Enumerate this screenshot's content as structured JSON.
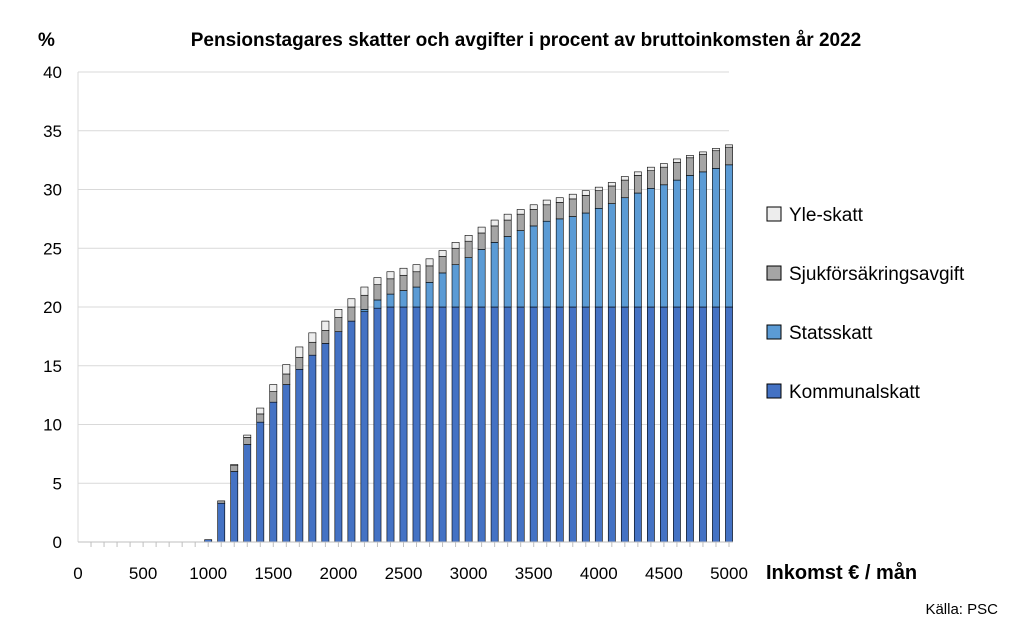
{
  "chart_data": {
    "type": "bar",
    "stacked": true,
    "title": "Pensionstagares skatter och avgifter i procent av bruttoinkomsten år 2022",
    "ylabel": "%",
    "xlabel": "Inkomst € / mån",
    "source": "Källa: PSC",
    "ylim": [
      0,
      40
    ],
    "xlim": [
      0,
      5000
    ],
    "yticks": [
      0,
      5,
      10,
      15,
      20,
      25,
      30,
      35,
      40
    ],
    "xticks": [
      0,
      500,
      1000,
      1500,
      2000,
      2500,
      3000,
      3500,
      4000,
      4500,
      5000
    ],
    "grid": true,
    "legend_position": "right",
    "x": [
      1000,
      1100,
      1200,
      1300,
      1400,
      1500,
      1600,
      1700,
      1800,
      1900,
      2000,
      2100,
      2200,
      2300,
      2400,
      2500,
      2600,
      2700,
      2800,
      2900,
      3000,
      3100,
      3200,
      3300,
      3400,
      3500,
      3600,
      3700,
      3800,
      3900,
      4000,
      4100,
      4200,
      4300,
      4400,
      4500,
      4600,
      4700,
      4800,
      4900,
      5000
    ],
    "series": [
      {
        "name": "Kommunalskatt",
        "color": "#4472C4",
        "values": [
          0.2,
          3.3,
          6.0,
          8.3,
          10.2,
          11.9,
          13.4,
          14.7,
          15.9,
          16.9,
          17.9,
          18.8,
          19.6,
          19.9,
          20,
          20,
          20,
          20,
          20,
          20,
          20,
          20,
          20,
          20,
          20,
          20,
          20,
          20,
          20,
          20,
          20,
          20,
          20,
          20,
          20,
          20,
          20,
          20,
          20,
          20,
          20
        ]
      },
      {
        "name": "Statsskatt",
        "color": "#5B9BD5",
        "values": [
          0,
          0,
          0,
          0,
          0,
          0,
          0,
          0,
          0,
          0,
          0,
          0,
          0.2,
          0.7,
          1.1,
          1.4,
          1.7,
          2.1,
          2.9,
          3.6,
          4.2,
          4.9,
          5.5,
          6.0,
          6.5,
          6.9,
          7.3,
          7.5,
          7.7,
          8.0,
          8.4,
          8.8,
          9.3,
          9.7,
          10.1,
          10.4,
          10.8,
          11.2,
          11.5,
          11.8,
          12.1
        ]
      },
      {
        "name": "Sjukförsäkringsavgift",
        "color": "#A5A5A5",
        "values": [
          0,
          0.2,
          0.5,
          0.6,
          0.7,
          0.9,
          0.9,
          1.0,
          1.1,
          1.1,
          1.2,
          1.2,
          1.2,
          1.3,
          1.3,
          1.3,
          1.3,
          1.4,
          1.4,
          1.4,
          1.4,
          1.4,
          1.4,
          1.4,
          1.4,
          1.4,
          1.4,
          1.4,
          1.5,
          1.5,
          1.5,
          1.5,
          1.5,
          1.5,
          1.5,
          1.5,
          1.5,
          1.5,
          1.5,
          1.5,
          1.5
        ]
      },
      {
        "name": "Yle-skatt",
        "color": "#EDEDED",
        "values": [
          0,
          0,
          0.1,
          0.2,
          0.5,
          0.6,
          0.8,
          0.9,
          0.8,
          0.8,
          0.7,
          0.7,
          0.7,
          0.6,
          0.6,
          0.6,
          0.6,
          0.6,
          0.5,
          0.5,
          0.5,
          0.5,
          0.5,
          0.5,
          0.4,
          0.4,
          0.4,
          0.4,
          0.4,
          0.4,
          0.3,
          0.3,
          0.3,
          0.3,
          0.3,
          0.3,
          0.3,
          0.2,
          0.2,
          0.2,
          0.2
        ]
      }
    ]
  }
}
